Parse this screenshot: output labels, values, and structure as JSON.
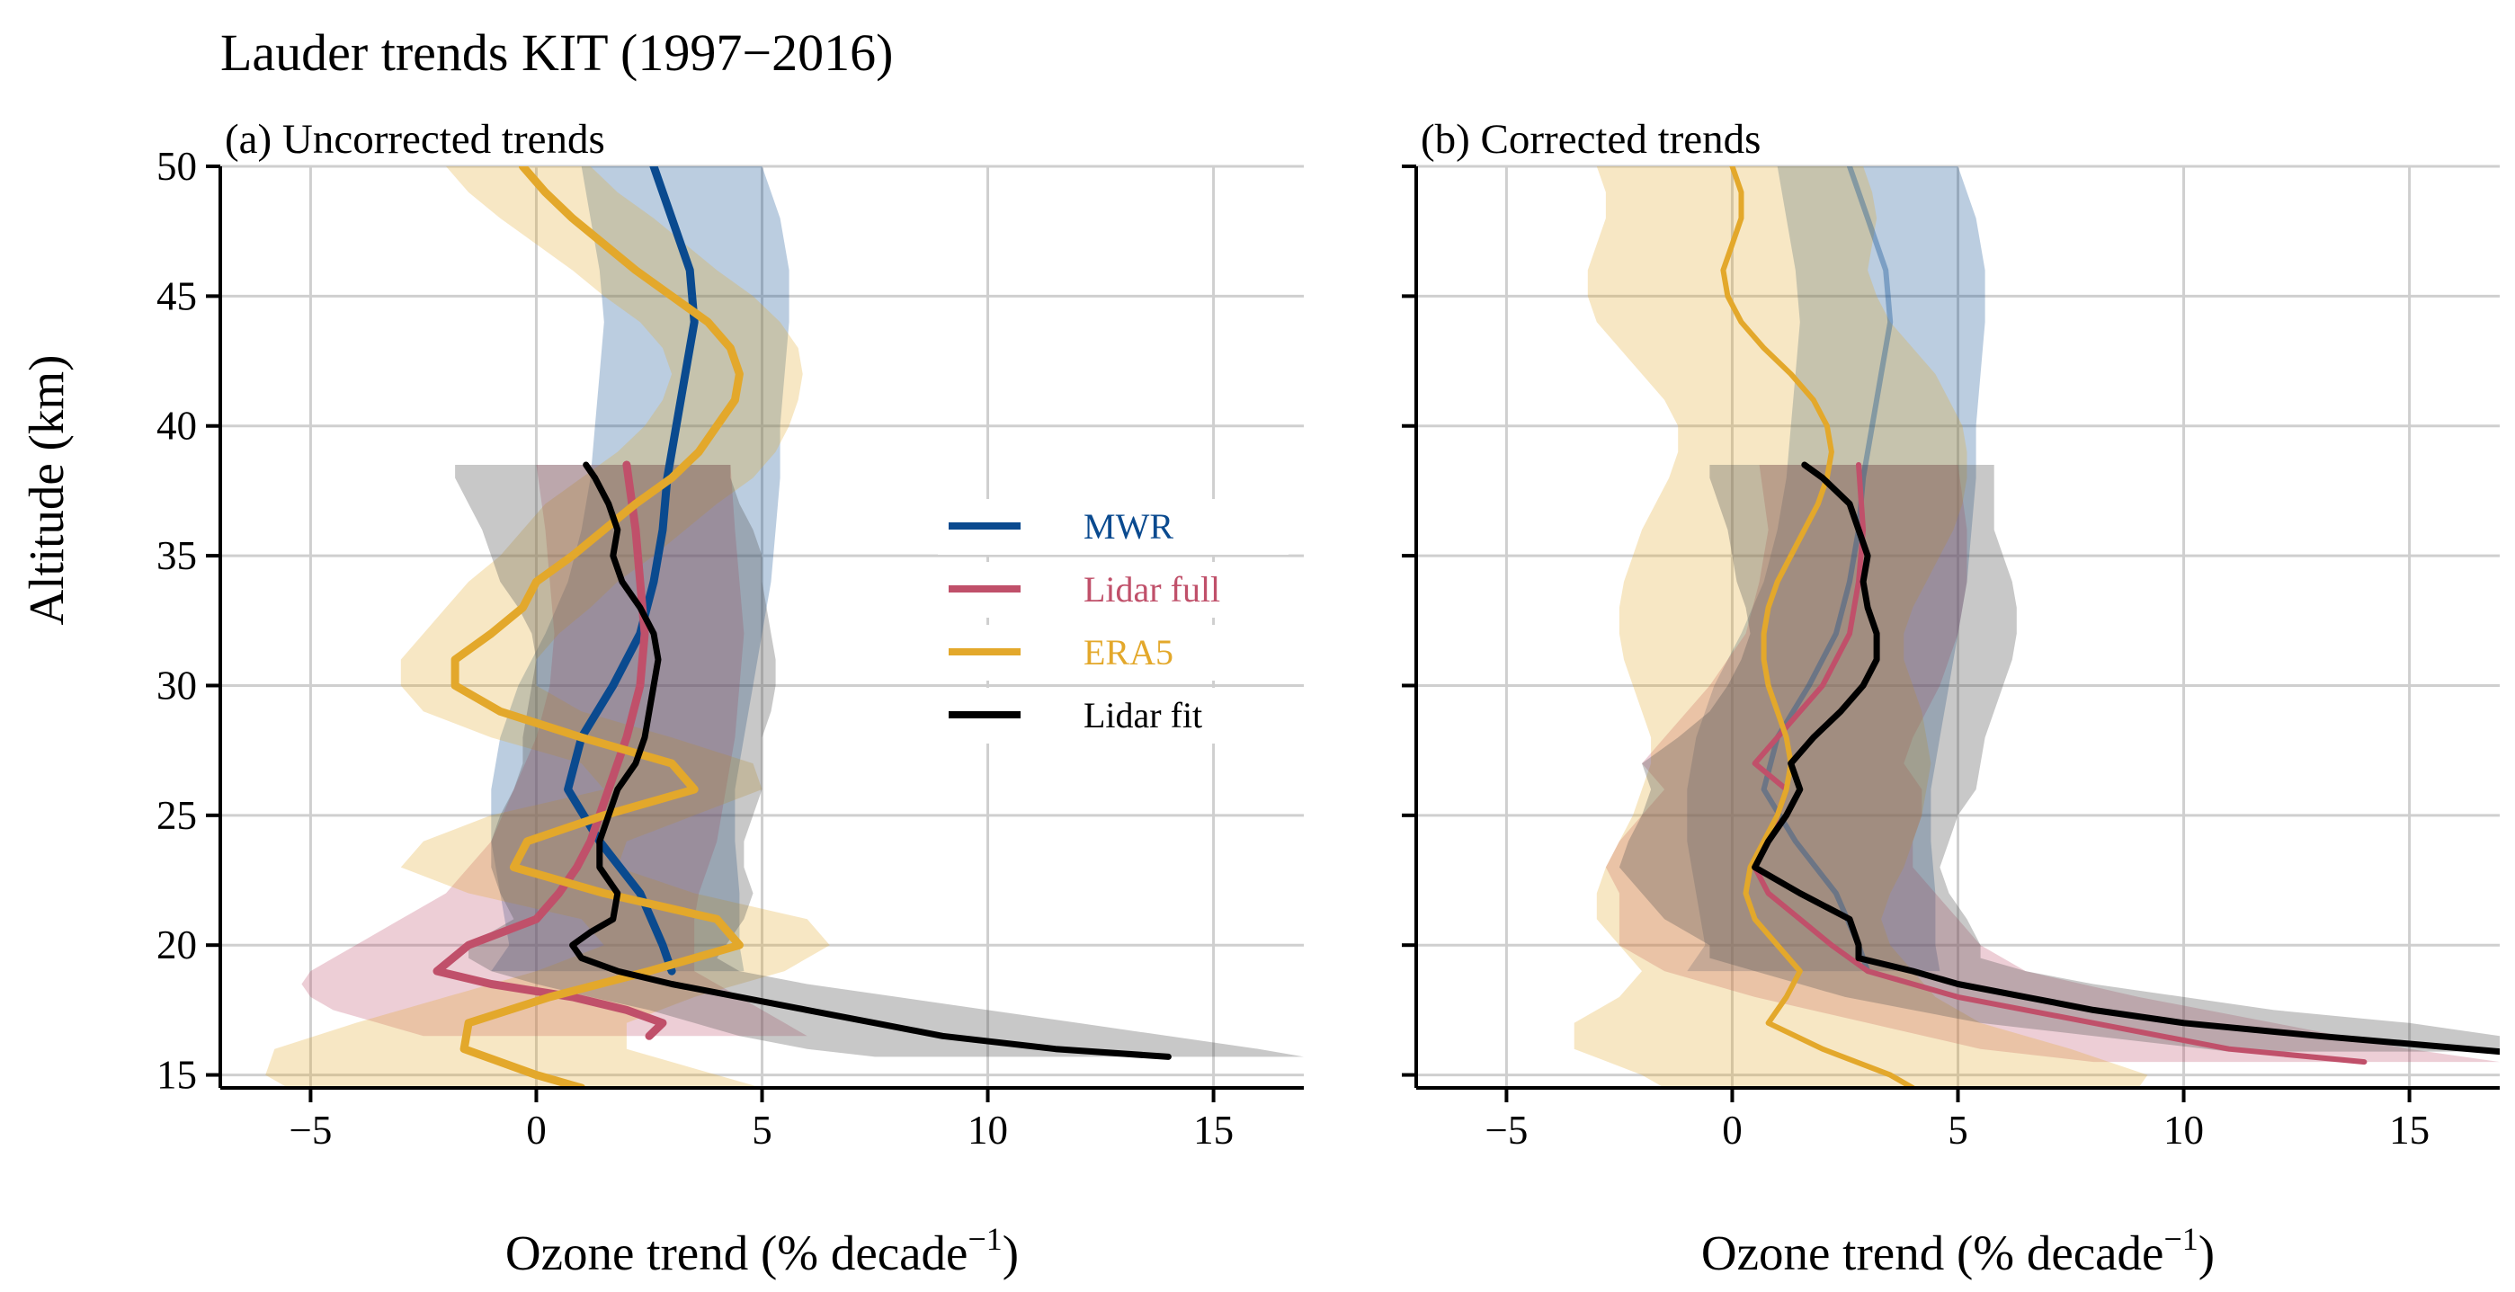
{
  "figure_title": "Lauder trends KIT (1997−2016)",
  "y_axis_label": "Altitude (km)",
  "x_axis_label_main": "Ozone trend (% decade",
  "x_axis_label_sup": "−1",
  "x_axis_label_close": ")",
  "colors": {
    "mwr": "#0a4a8f",
    "lidar_full": "#c0506a",
    "era5": "#e3a82b",
    "lidar_fit": "#000000",
    "grid": "#cfcfcf"
  },
  "chart_data": [
    {
      "type": "line",
      "panel": "a",
      "title": "(a) Uncorrected trends",
      "xlabel": "Ozone trend (% decade⁻¹)",
      "ylabel": "Altitude (km)",
      "xlim": [
        -7,
        17
      ],
      "ylim": [
        14.5,
        50
      ],
      "xticks": [
        -5,
        0,
        5,
        10,
        15
      ],
      "xtick_labels": [
        "−5",
        "0",
        "5",
        "10",
        "15"
      ],
      "yticks": [
        15,
        20,
        25,
        30,
        35,
        40,
        45,
        50
      ],
      "ytick_labels": [
        "15",
        "20",
        "25",
        "30",
        "35",
        "40",
        "45",
        "50"
      ],
      "grid": true,
      "legend_position": "center-right",
      "series": [
        {
          "name": "MWR",
          "key": "mwr",
          "altitude": [
            19,
            20,
            22,
            24,
            26,
            28,
            30,
            32,
            34,
            36,
            38,
            40,
            42,
            44,
            46,
            48,
            50
          ],
          "trend": [
            3.0,
            2.8,
            2.3,
            1.4,
            0.7,
            1.0,
            1.7,
            2.3,
            2.6,
            2.8,
            2.9,
            3.1,
            3.3,
            3.5,
            3.4,
            3.0,
            2.6
          ],
          "lower": [
            -1.0,
            -0.6,
            -0.8,
            -1.0,
            -1.0,
            -0.8,
            -0.4,
            0.2,
            0.7,
            1.0,
            1.2,
            1.3,
            1.4,
            1.5,
            1.4,
            1.2,
            1.0
          ],
          "upper": [
            4.6,
            4.5,
            4.5,
            4.4,
            4.4,
            4.6,
            4.8,
            5.0,
            5.2,
            5.3,
            5.4,
            5.4,
            5.5,
            5.6,
            5.6,
            5.4,
            5.0
          ]
        },
        {
          "name": "Lidar full",
          "key": "lidar_full",
          "altitude": [
            16.5,
            17,
            17.5,
            18,
            18.5,
            19,
            20,
            21,
            22,
            23,
            24,
            26,
            28,
            30,
            32,
            34,
            36,
            38.5
          ],
          "trend": [
            2.5,
            2.8,
            2.0,
            0.8,
            -1.0,
            -2.2,
            -1.5,
            0.0,
            0.5,
            0.9,
            1.2,
            1.6,
            2.0,
            2.3,
            2.4,
            2.3,
            2.2,
            2.0
          ],
          "lower": [
            -2.5,
            -3.5,
            -4.5,
            -5.0,
            -5.2,
            -5.0,
            -4.0,
            -3.0,
            -2.0,
            -1.5,
            -1.0,
            -0.5,
            0.0,
            0.3,
            0.4,
            0.3,
            0.2,
            0.0
          ],
          "upper": [
            6.0,
            5.5,
            5.0,
            4.5,
            4.0,
            3.5,
            3.5,
            3.5,
            3.6,
            3.8,
            4.0,
            4.2,
            4.4,
            4.5,
            4.6,
            4.5,
            4.4,
            4.3
          ]
        },
        {
          "name": "ERA5",
          "key": "era5",
          "altitude": [
            14.5,
            15,
            16,
            17,
            18,
            19,
            20,
            21,
            22,
            23,
            24,
            25,
            26,
            27,
            28,
            29,
            30,
            31,
            32,
            33,
            34,
            35,
            36,
            37,
            38,
            39,
            40,
            41,
            42,
            43,
            44,
            45,
            46,
            47,
            48,
            49,
            50
          ],
          "trend": [
            1.0,
            0.0,
            -1.6,
            -1.5,
            0.3,
            2.5,
            4.5,
            4.0,
            1.5,
            -0.5,
            -0.2,
            1.5,
            3.5,
            3.0,
            1.0,
            -0.8,
            -1.8,
            -1.8,
            -1.0,
            -0.3,
            0.0,
            0.8,
            1.5,
            2.2,
            3.0,
            3.6,
            4.0,
            4.4,
            4.5,
            4.3,
            3.8,
            3.0,
            2.2,
            1.5,
            0.8,
            0.2,
            -0.3
          ],
          "lower": [
            -5.5,
            -6.0,
            -5.8,
            -4.0,
            -2.0,
            0.0,
            1.5,
            1.0,
            -1.5,
            -3.0,
            -2.5,
            -1.0,
            1.5,
            1.0,
            -1.0,
            -2.5,
            -3.0,
            -3.0,
            -2.5,
            -2.0,
            -1.5,
            -0.8,
            -0.3,
            0.2,
            1.0,
            1.8,
            2.4,
            2.8,
            3.0,
            2.8,
            2.3,
            1.5,
            0.8,
            0.0,
            -0.8,
            -1.5,
            -2.0
          ],
          "upper": [
            5.0,
            4.0,
            2.0,
            2.0,
            3.5,
            5.5,
            6.5,
            6.0,
            3.5,
            1.8,
            2.0,
            3.5,
            5.0,
            4.8,
            3.0,
            1.0,
            0.0,
            0.0,
            0.5,
            1.2,
            1.8,
            2.6,
            3.3,
            4.0,
            4.8,
            5.3,
            5.6,
            5.8,
            5.9,
            5.8,
            5.4,
            4.8,
            4.0,
            3.3,
            2.6,
            1.8,
            1.2
          ]
        },
        {
          "name": "Lidar fit",
          "key": "lidar_fit",
          "altitude": [
            15.7,
            16,
            16.5,
            17,
            17.5,
            18,
            18.5,
            19,
            19.5,
            20,
            20.5,
            21,
            22,
            23,
            24,
            25,
            26,
            27,
            28,
            29,
            30,
            31,
            32,
            33,
            34,
            35,
            36,
            37,
            38,
            38.5
          ],
          "trend": [
            14.0,
            11.5,
            9.0,
            7.5,
            6.0,
            4.5,
            3.0,
            1.8,
            1.0,
            0.8,
            1.2,
            1.7,
            1.8,
            1.4,
            1.4,
            1.6,
            1.8,
            2.2,
            2.4,
            2.5,
            2.6,
            2.7,
            2.6,
            2.3,
            1.9,
            1.7,
            1.8,
            1.6,
            1.3,
            1.1
          ],
          "lower": [
            7.5,
            6.0,
            4.5,
            3.5,
            2.5,
            1.2,
            0.0,
            -1.0,
            -1.5,
            -1.5,
            -1.0,
            -0.5,
            -0.8,
            -1.0,
            -1.0,
            -0.8,
            -0.5,
            -0.3,
            -0.3,
            -0.2,
            -0.1,
            0.0,
            -0.1,
            -0.4,
            -0.8,
            -1.0,
            -1.2,
            -1.5,
            -1.8,
            -1.8
          ],
          "upper": [
            17.0,
            16.0,
            14.0,
            12.0,
            10.0,
            8.0,
            6.0,
            4.5,
            4.0,
            4.2,
            4.4,
            4.6,
            4.8,
            4.6,
            4.6,
            4.8,
            5.0,
            5.0,
            5.0,
            5.2,
            5.3,
            5.3,
            5.2,
            5.1,
            5.0,
            5.0,
            4.8,
            4.5,
            4.3,
            4.3
          ]
        }
      ]
    },
    {
      "type": "line",
      "panel": "b",
      "title": "(b) Corrected trends",
      "xlabel": "Ozone trend (% decade⁻¹)",
      "ylabel": "",
      "xlim": [
        -7,
        17
      ],
      "ylim": [
        14.5,
        50
      ],
      "xticks": [
        -5,
        0,
        5,
        10,
        15
      ],
      "xtick_labels": [
        "−5",
        "0",
        "5",
        "10",
        "15"
      ],
      "yticks": [
        15,
        20,
        25,
        30,
        35,
        40,
        45,
        50
      ],
      "grid": true,
      "series": [
        {
          "name": "MWR",
          "key": "mwr",
          "faded": true,
          "altitude": [
            19,
            20,
            22,
            24,
            26,
            28,
            30,
            32,
            34,
            36,
            38,
            40,
            42,
            44,
            46,
            48,
            50
          ],
          "trend": [
            3.0,
            2.8,
            2.3,
            1.4,
            0.7,
            1.0,
            1.7,
            2.3,
            2.6,
            2.8,
            2.9,
            3.1,
            3.3,
            3.5,
            3.4,
            3.0,
            2.6
          ],
          "lower": [
            -1.0,
            -0.6,
            -0.8,
            -1.0,
            -1.0,
            -0.8,
            -0.4,
            0.2,
            0.7,
            1.0,
            1.2,
            1.3,
            1.4,
            1.5,
            1.4,
            1.2,
            1.0
          ],
          "upper": [
            4.6,
            4.5,
            4.5,
            4.4,
            4.4,
            4.6,
            4.8,
            5.0,
            5.2,
            5.3,
            5.4,
            5.4,
            5.5,
            5.6,
            5.6,
            5.4,
            5.0
          ]
        },
        {
          "name": "Lidar full",
          "key": "lidar_full",
          "altitude": [
            15.5,
            16,
            17,
            18,
            19,
            20,
            21,
            22,
            23,
            24,
            25,
            26,
            27,
            28,
            30,
            32,
            34,
            36,
            38.5
          ],
          "trend": [
            14.0,
            11.0,
            8.0,
            5.0,
            3.0,
            2.2,
            1.5,
            0.8,
            0.5,
            0.8,
            1.0,
            1.2,
            0.5,
            1.0,
            2.0,
            2.6,
            2.8,
            2.9,
            2.8
          ],
          "lower": [
            8.0,
            5.5,
            3.0,
            0.5,
            -1.5,
            -2.5,
            -2.5,
            -2.5,
            -2.8,
            -2.5,
            -2.0,
            -1.5,
            -2.0,
            -1.5,
            -0.5,
            0.3,
            0.6,
            0.8,
            0.6
          ],
          "upper": [
            17.0,
            15.0,
            12.0,
            9.0,
            6.5,
            5.5,
            5.0,
            4.5,
            4.0,
            4.0,
            4.2,
            4.2,
            3.8,
            4.0,
            4.6,
            5.0,
            5.2,
            5.2,
            5.0
          ]
        },
        {
          "name": "ERA5",
          "key": "era5",
          "altitude": [
            14.5,
            15,
            16,
            17,
            18,
            19,
            20,
            21,
            22,
            23,
            24,
            25,
            26,
            27,
            28,
            29,
            30,
            31,
            32,
            33,
            34,
            35,
            36,
            37,
            38,
            39,
            40,
            41,
            42,
            43,
            44,
            45,
            46,
            47,
            48,
            49,
            50
          ],
          "trend": [
            4.0,
            3.5,
            2.0,
            0.8,
            1.2,
            1.5,
            1.0,
            0.5,
            0.3,
            0.4,
            0.7,
            1.0,
            1.2,
            1.3,
            1.2,
            1.0,
            0.8,
            0.7,
            0.7,
            0.8,
            1.0,
            1.3,
            1.6,
            1.9,
            2.1,
            2.2,
            2.1,
            1.8,
            1.3,
            0.7,
            0.2,
            -0.1,
            -0.2,
            0.0,
            0.2,
            0.2,
            0.0
          ],
          "lower": [
            -1.5,
            -2.0,
            -3.5,
            -3.5,
            -2.5,
            -2.0,
            -2.5,
            -3.0,
            -3.0,
            -2.8,
            -2.5,
            -2.2,
            -2.0,
            -1.8,
            -1.8,
            -2.0,
            -2.2,
            -2.4,
            -2.5,
            -2.5,
            -2.4,
            -2.2,
            -2.0,
            -1.7,
            -1.4,
            -1.2,
            -1.2,
            -1.5,
            -2.0,
            -2.5,
            -3.0,
            -3.2,
            -3.2,
            -3.0,
            -2.8,
            -2.8,
            -3.0
          ],
          "upper": [
            9.0,
            9.2,
            7.5,
            5.5,
            4.5,
            4.0,
            3.5,
            3.3,
            3.5,
            3.8,
            4.0,
            4.2,
            4.3,
            4.4,
            4.3,
            4.2,
            4.0,
            3.8,
            3.8,
            4.0,
            4.3,
            4.6,
            4.9,
            5.1,
            5.2,
            5.2,
            5.1,
            4.8,
            4.5,
            4.0,
            3.5,
            3.2,
            3.0,
            3.1,
            3.2,
            3.1,
            2.9
          ]
        },
        {
          "name": "Lidar fit",
          "key": "lidar_fit",
          "altitude": [
            15.9,
            16.5,
            17,
            17.5,
            18,
            18.5,
            19,
            19.5,
            20,
            21,
            22,
            23,
            24,
            25,
            26,
            27,
            28,
            29,
            30,
            31,
            32,
            33,
            34,
            35,
            36,
            37,
            38,
            38.5
          ],
          "trend": [
            17.0,
            13.0,
            10.0,
            8.0,
            6.5,
            5.0,
            4.0,
            2.8,
            2.8,
            2.6,
            1.5,
            0.5,
            0.8,
            1.2,
            1.5,
            1.3,
            1.8,
            2.4,
            2.9,
            3.2,
            3.2,
            3.0,
            2.9,
            3.0,
            2.8,
            2.6,
            2.0,
            1.6
          ],
          "lower": [
            11.0,
            8.0,
            5.5,
            4.0,
            2.5,
            1.5,
            0.5,
            -0.5,
            -0.5,
            -1.5,
            -2.0,
            -2.5,
            -2.3,
            -2.0,
            -1.8,
            -2.0,
            -1.2,
            -0.5,
            -0.1,
            0.2,
            0.4,
            0.3,
            0.1,
            0.0,
            -0.1,
            -0.3,
            -0.5,
            -0.5
          ],
          "upper": [
            17.0,
            17.0,
            15.0,
            12.0,
            10.0,
            8.0,
            6.5,
            5.5,
            5.5,
            5.2,
            4.8,
            4.6,
            4.8,
            5.0,
            5.4,
            5.5,
            5.6,
            5.8,
            6.0,
            6.2,
            6.3,
            6.3,
            6.2,
            6.0,
            5.8,
            5.8,
            5.8,
            5.8
          ]
        }
      ]
    }
  ]
}
